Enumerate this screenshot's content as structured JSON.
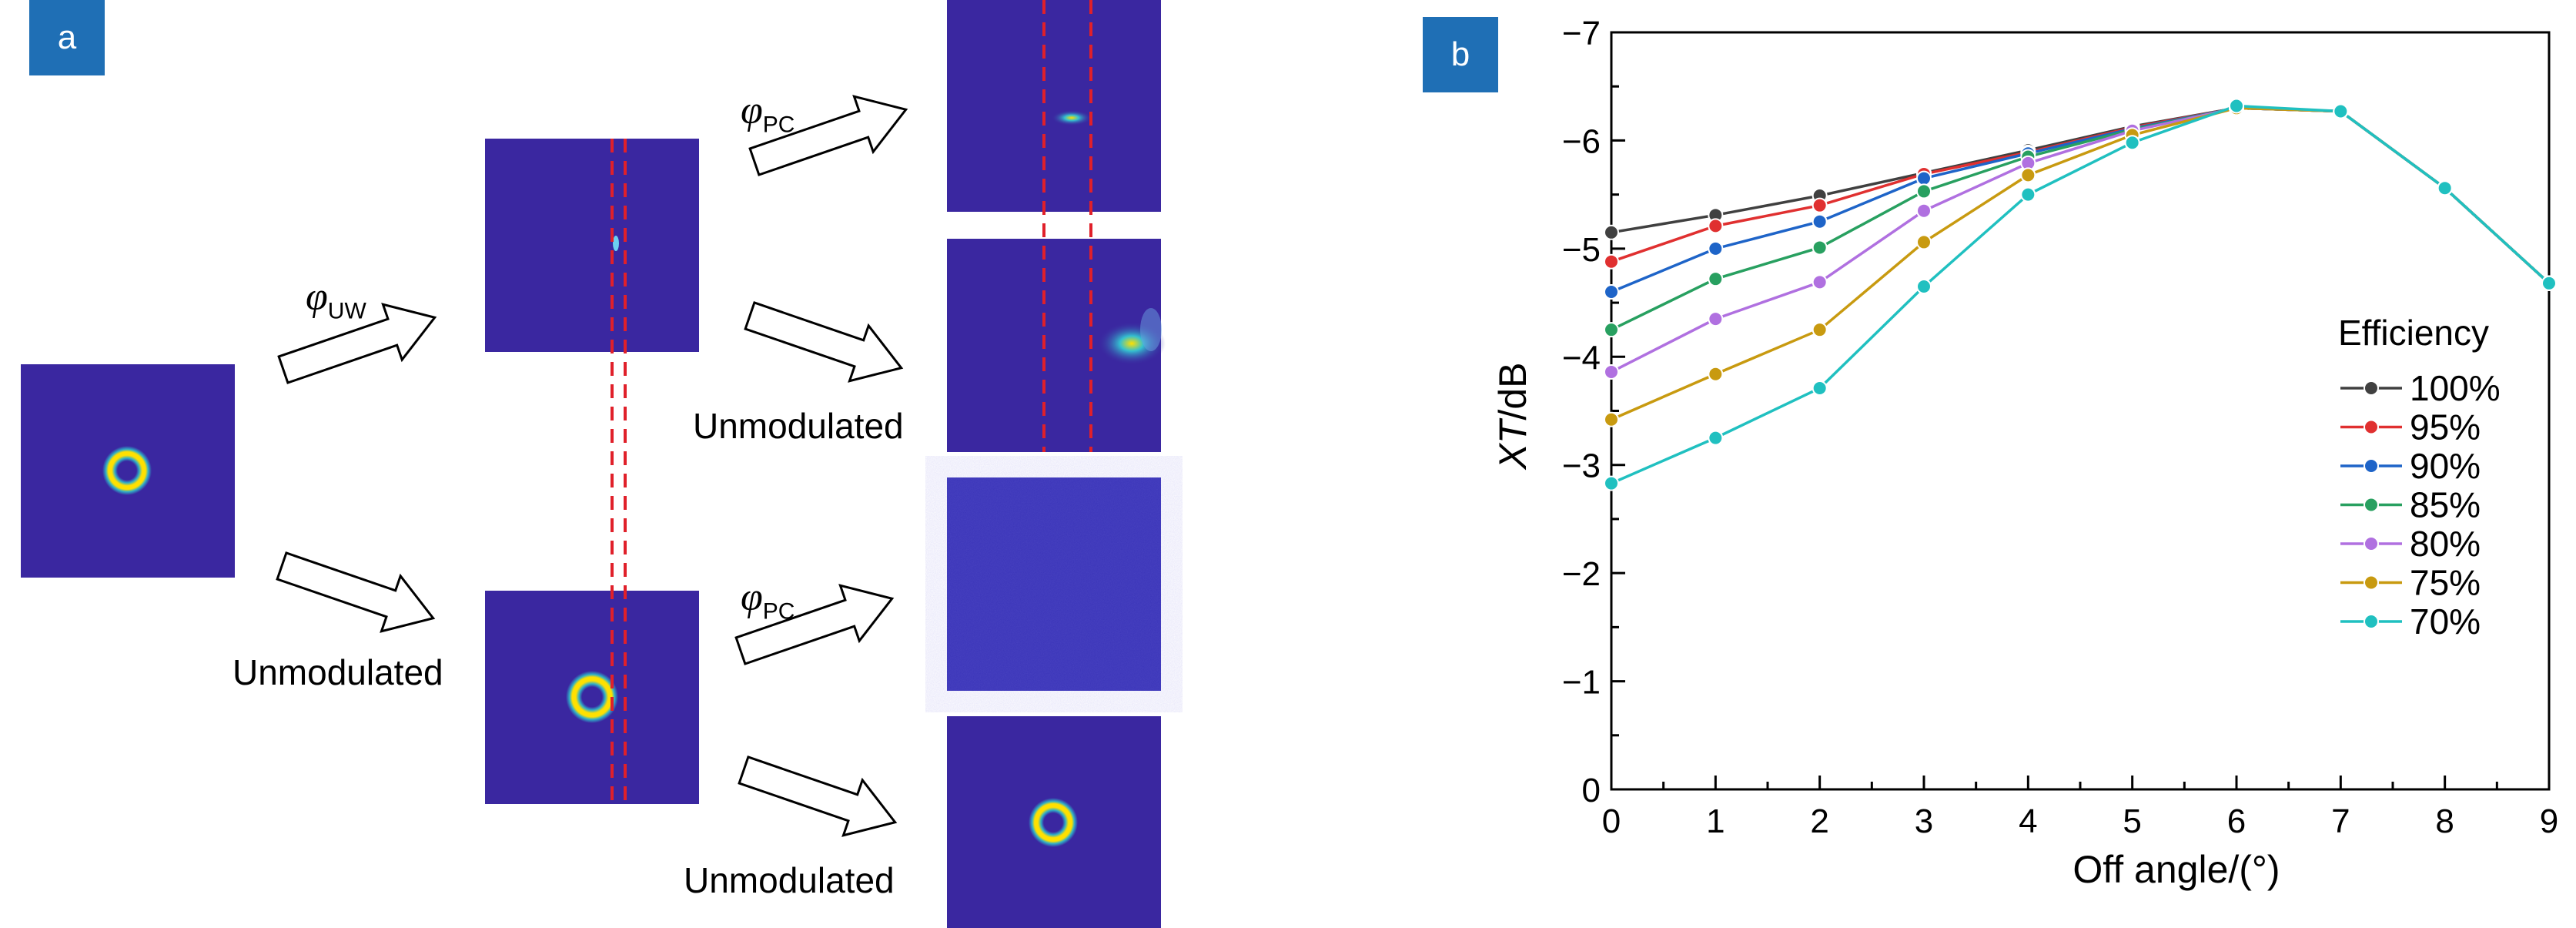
{
  "panel_a": {
    "badge": "a",
    "phase_uw": {
      "symbol": "φ",
      "subscript": "UW"
    },
    "phase_pc_top": {
      "symbol": "φ",
      "subscript": "PC"
    },
    "phase_pc_bottom": {
      "symbol": "φ",
      "subscript": "PC"
    },
    "label_unmodulated_middle": "Unmodulated",
    "label_unmodulated_top_right": "Unmodulated",
    "label_unmodulated_bottom_right": "Unmodulated",
    "colors": {
      "field_background": "#3a27a0",
      "ring_outer": "#ffe000",
      "marker_line": "#e0202a"
    }
  },
  "panel_b": {
    "badge": "b",
    "colors": {
      "badge": "#1f6fb5"
    }
  },
  "chart_data": {
    "type": "line",
    "xlabel": "Off angle/(°)",
    "ylabel_italic": "XT",
    "ylabel_rest": "/dB",
    "xlim": [
      0,
      9
    ],
    "ylim": [
      0,
      -7
    ],
    "y_axis_inverted": true,
    "x_ticks": [
      "0",
      "1",
      "2",
      "3",
      "4",
      "5",
      "6",
      "7",
      "8",
      "9"
    ],
    "y_ticks": [
      "0",
      "−1",
      "−2",
      "−3",
      "−4",
      "−5",
      "−6",
      "−7"
    ],
    "legend_title": "Efficiency",
    "legend_position": "right",
    "grid": false,
    "x": [
      0,
      1,
      2,
      3,
      4,
      5,
      6,
      7,
      8,
      9
    ],
    "series": [
      {
        "name": "100%",
        "color": "#404040",
        "values": [
          -5.15,
          -5.31,
          -5.49,
          -5.7,
          -5.91,
          -6.13,
          -6.3,
          -6.27,
          -5.56,
          -4.68
        ]
      },
      {
        "name": "95%",
        "color": "#e03030",
        "values": [
          -4.88,
          -5.21,
          -5.4,
          -5.69,
          -5.89,
          -6.12,
          -6.3,
          -6.27,
          -5.56,
          -4.68
        ]
      },
      {
        "name": "90%",
        "color": "#1e64c8",
        "values": [
          -4.6,
          -5.0,
          -5.25,
          -5.65,
          -5.88,
          -6.11,
          -6.3,
          -6.27,
          -5.56,
          -4.68
        ]
      },
      {
        "name": "85%",
        "color": "#28a060",
        "values": [
          -4.25,
          -4.72,
          -5.01,
          -5.53,
          -5.85,
          -6.1,
          -6.3,
          -6.27,
          -5.56,
          -4.68
        ]
      },
      {
        "name": "80%",
        "color": "#b070e0",
        "values": [
          -3.86,
          -4.35,
          -4.69,
          -5.35,
          -5.79,
          -6.09,
          -6.3,
          -6.27,
          -5.56,
          -4.68
        ]
      },
      {
        "name": "75%",
        "color": "#c89a10",
        "values": [
          -3.42,
          -3.84,
          -4.25,
          -5.06,
          -5.68,
          -6.05,
          -6.3,
          -6.27,
          -5.56,
          -4.68
        ]
      },
      {
        "name": "70%",
        "color": "#20c0c0",
        "values": [
          -2.83,
          -3.25,
          -3.71,
          -4.65,
          -5.5,
          -5.98,
          -6.32,
          -6.27,
          -5.56,
          -4.68
        ]
      }
    ]
  }
}
